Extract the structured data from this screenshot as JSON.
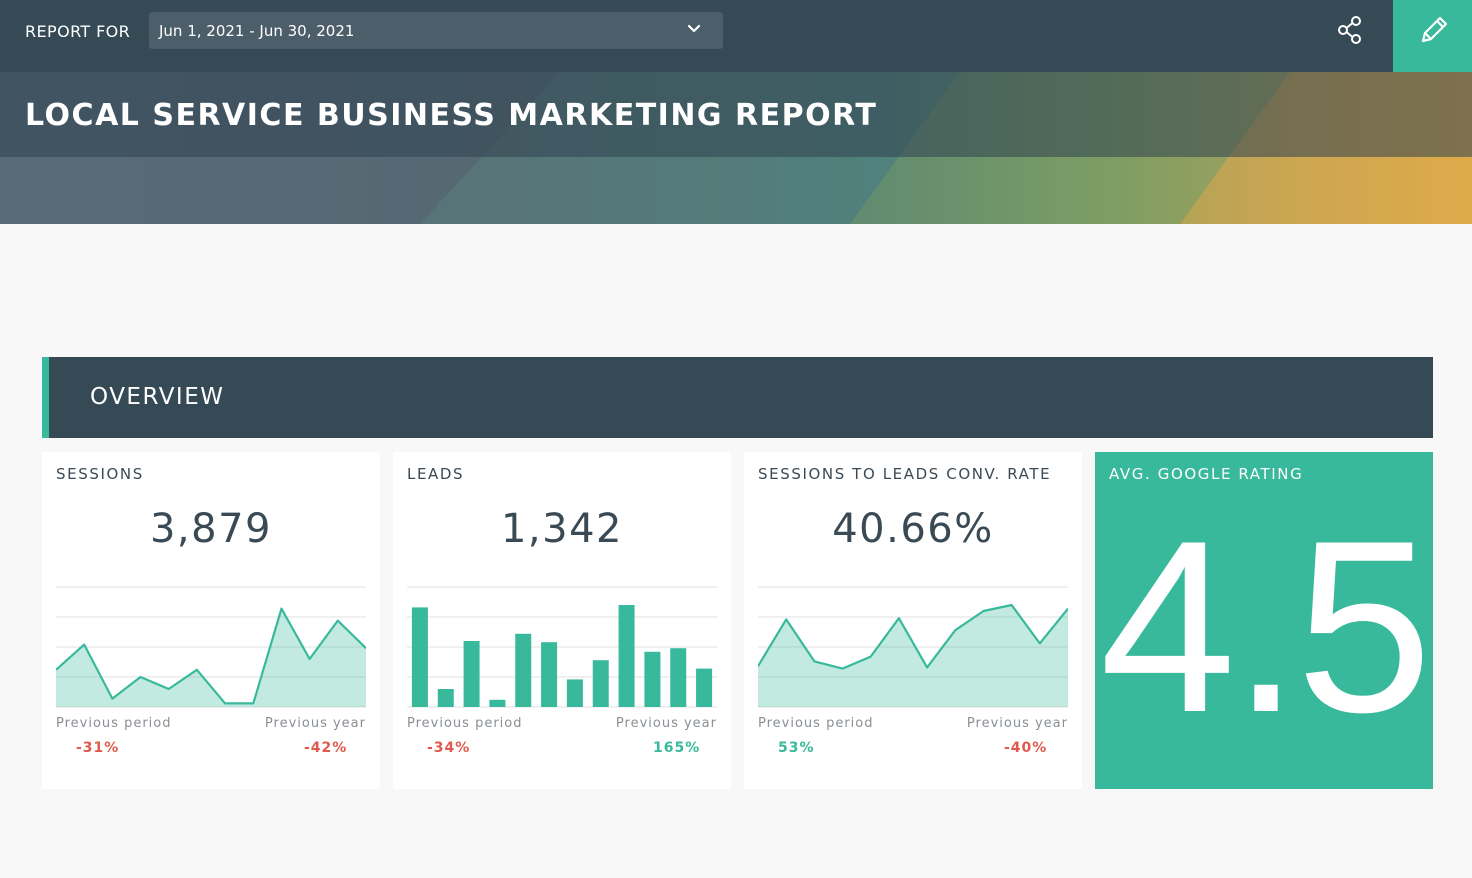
{
  "header": {
    "report_for_label": "REPORT FOR",
    "date_range": "Jun 1, 2021 - Jun 30, 2021",
    "title": "LOCAL SERVICE BUSINESS MARKETING REPORT"
  },
  "section": {
    "title": "OVERVIEW"
  },
  "colors": {
    "accent": "#38b99b",
    "dark": "#364a56",
    "negative": "#e05a4c",
    "positive": "#38b99b"
  },
  "cards": [
    {
      "title": "SESSIONS",
      "value": "3,879",
      "prev_period_label": "Previous period",
      "prev_year_label": "Previous year",
      "prev_period": "-31%",
      "prev_year": "-42%",
      "prev_period_trend": "neg",
      "prev_year_trend": "neg"
    },
    {
      "title": "LEADS",
      "value": "1,342",
      "prev_period_label": "Previous period",
      "prev_year_label": "Previous year",
      "prev_period": "-34%",
      "prev_year": "165%",
      "prev_period_trend": "neg",
      "prev_year_trend": "pos"
    },
    {
      "title": "SESSIONS TO LEADS CONV. RATE",
      "value": "40.66%",
      "prev_period_label": "Previous period",
      "prev_year_label": "Previous year",
      "prev_period": "53%",
      "prev_year": "-40%",
      "prev_period_trend": "pos",
      "prev_year_trend": "neg"
    },
    {
      "title": "AVG. GOOGLE RATING",
      "value": "4.5"
    }
  ],
  "chart_data": [
    {
      "type": "area",
      "values": [
        0.31,
        0.52,
        0.07,
        0.25,
        0.15,
        0.31,
        0.03,
        0.03,
        0.82,
        0.4,
        0.72,
        0.49
      ]
    },
    {
      "type": "bar",
      "values": [
        0.83,
        0.15,
        0.55,
        0.06,
        0.61,
        0.54,
        0.23,
        0.39,
        0.85,
        0.46,
        0.49,
        0.32
      ]
    },
    {
      "type": "area",
      "values": [
        0.34,
        0.73,
        0.38,
        0.32,
        0.42,
        0.74,
        0.33,
        0.64,
        0.8,
        0.85,
        0.53,
        0.82
      ]
    }
  ],
  "icons": {
    "share": "share-icon",
    "edit": "pencil-icon",
    "dropdown": "chevron-down-icon"
  }
}
